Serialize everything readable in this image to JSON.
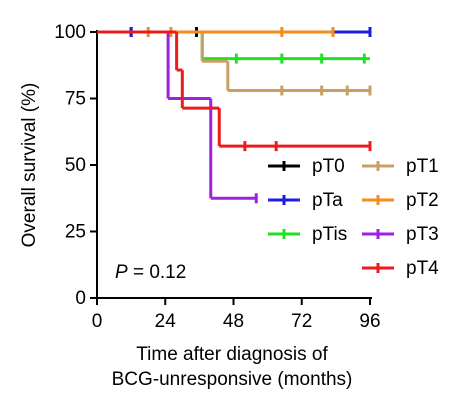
{
  "chart_data": {
    "type": "step",
    "x_label": [
      "Time after diagnosis of",
      "BCG-unresponsive (months)"
    ],
    "y_label": "Overall survival (%)",
    "annotation": {
      "italic": "P",
      "text": " = 0.12"
    },
    "xlim": [
      0,
      96
    ],
    "xticks": [
      0,
      24,
      48,
      72,
      96
    ],
    "ylim": [
      0,
      100
    ],
    "yticks": [
      0,
      25,
      50,
      75,
      100
    ],
    "series": [
      {
        "name": "pT0",
        "color": "#000000",
        "x": [
          0,
          35
        ],
        "values": [
          100,
          100
        ],
        "censored": [
          12,
          35
        ]
      },
      {
        "name": "pTa",
        "color": "#1c1cdc",
        "x": [
          0,
          96
        ],
        "values": [
          100,
          100
        ],
        "censored": [
          12,
          96
        ]
      },
      {
        "name": "pTis",
        "color": "#22e022",
        "x": [
          0,
          37,
          96
        ],
        "values": [
          100,
          90,
          90
        ],
        "censored": [
          49,
          65,
          79,
          94
        ]
      },
      {
        "name": "pT1",
        "color": "#c8a064",
        "x": [
          0,
          37,
          46,
          96
        ],
        "values": [
          100,
          89,
          78,
          78
        ],
        "censored": [
          65,
          79,
          88,
          96
        ]
      },
      {
        "name": "pT2",
        "color": "#f28c1c",
        "x": [
          0,
          83
        ],
        "values": [
          100,
          100
        ],
        "censored": [
          18,
          26,
          65,
          83
        ]
      },
      {
        "name": "pT3",
        "color": "#a020e0",
        "x": [
          0,
          25,
          40,
          56
        ],
        "values": [
          100,
          75,
          37.5,
          37.5
        ],
        "censored": [
          56
        ]
      },
      {
        "name": "pT4",
        "color": "#ec1c1c",
        "x": [
          0,
          28,
          30,
          43,
          96
        ],
        "values": [
          100,
          85.7,
          71.4,
          57.1,
          57.1
        ],
        "censored": [
          52,
          63,
          96
        ]
      }
    ]
  }
}
